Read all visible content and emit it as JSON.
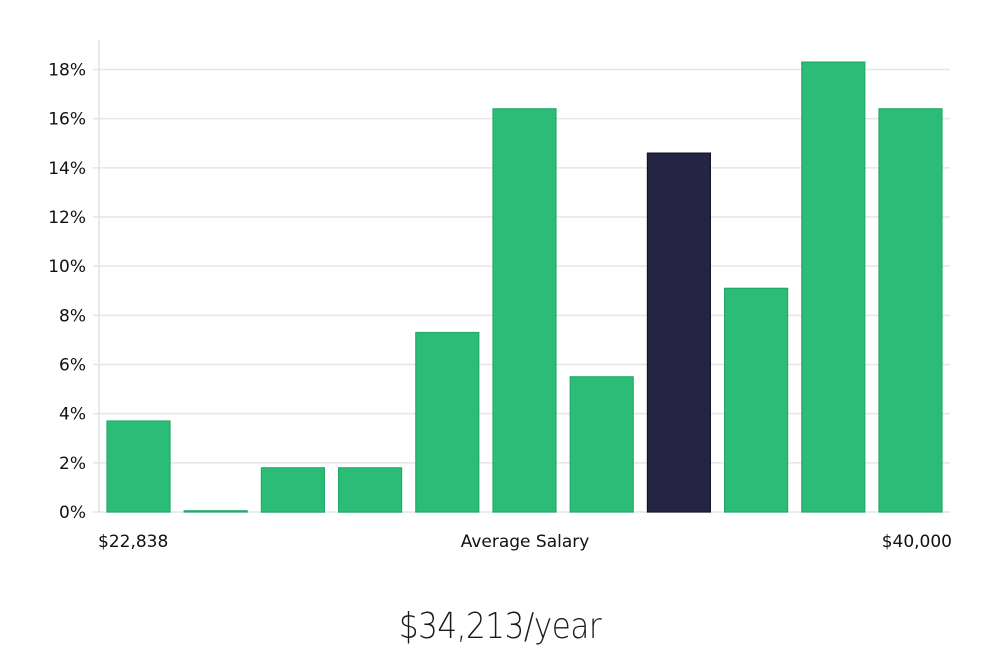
{
  "chart_data": {
    "type": "bar",
    "x_min_label": "$22,838",
    "x_center_label": "Average Salary",
    "x_max_label": "$40,000",
    "y_tick_labels": [
      "0%",
      "2%",
      "4%",
      "6%",
      "8%",
      "10%",
      "12%",
      "14%",
      "16%",
      "18%"
    ],
    "y_ticks": [
      0,
      2,
      4,
      6,
      8,
      10,
      12,
      14,
      16,
      18
    ],
    "ylim": [
      0,
      19.2
    ],
    "values": [
      3.7,
      0.05,
      1.8,
      1.8,
      7.3,
      16.4,
      5.5,
      14.6,
      9.1,
      18.3,
      16.4
    ],
    "highlight_index": 7,
    "colors": {
      "bar": "#2bbd77",
      "highlight": "#262443",
      "grid": "#e6e6e6",
      "axis": "#e0e0e0"
    },
    "grid": true
  },
  "summary": {
    "salary_text": "$34,213/year"
  }
}
